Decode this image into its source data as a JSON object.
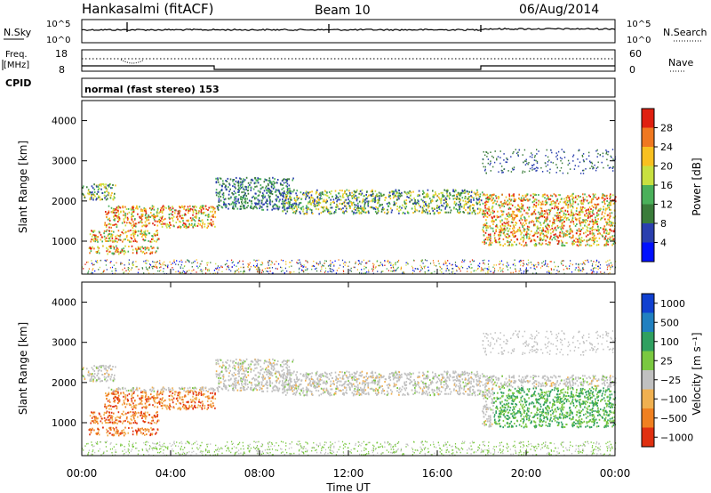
{
  "header": {
    "station": "Hankasalmi (fitACF)",
    "beam": "Beam 10",
    "date": "06/Aug/2014"
  },
  "params": {
    "nsky_label": "N.Sky",
    "nsearch_label": "N.Search",
    "freq_label_1": "Freq.",
    "freq_label_2": "[MHz]",
    "nave_label": "Nave",
    "cpid_label": "CPID",
    "cpid_text": "normal (fast stereo) 153",
    "noise_ticks": [
      "10^5",
      "10^0"
    ],
    "freq_ticks": [
      "18",
      "8"
    ],
    "nave_ticks": [
      "60",
      "0"
    ]
  },
  "chart_data": [
    {
      "type": "heatmap",
      "name": "power",
      "ylabel": "Slant Range [km]",
      "xlabel": "",
      "ylim": [
        180,
        4500
      ],
      "y_ticks": [
        "4000",
        "3000",
        "2000",
        "1000"
      ],
      "colorbar_label": "Power [dB]",
      "colorbar_ticks": [
        "28",
        "24",
        "20",
        "16",
        "12",
        "8",
        "4"
      ],
      "colors": [
        "#0010ff",
        "#2a3fae",
        "#3a7c3a",
        "#4ab05a",
        "#c8e040",
        "#f8c020",
        "#f07820",
        "#e02010"
      ],
      "scatter_bands": [
        {
          "t": [
            0.0,
            1.5
          ],
          "r": [
            2050,
            2450
          ],
          "level": "mid"
        },
        {
          "t": [
            0.3,
            3.5
          ],
          "r": [
            1000,
            1300
          ],
          "level": "high"
        },
        {
          "t": [
            0.3,
            3.5
          ],
          "r": [
            700,
            900
          ],
          "level": "high"
        },
        {
          "t": [
            1.0,
            6.0
          ],
          "r": [
            1350,
            1900
          ],
          "level": "high"
        },
        {
          "t": [
            6.0,
            9.5
          ],
          "r": [
            1800,
            2600
          ],
          "level": "low"
        },
        {
          "t": [
            9.0,
            18.0
          ],
          "r": [
            1700,
            2300
          ],
          "level": "mid"
        },
        {
          "t": [
            18.0,
            24.0
          ],
          "r": [
            900,
            2200
          ],
          "level": "high"
        }
      ]
    },
    {
      "type": "heatmap",
      "name": "velocity",
      "ylabel": "Slant Range [km]",
      "xlabel": "Time UT",
      "ylim": [
        180,
        4500
      ],
      "y_ticks": [
        "4000",
        "3000",
        "2000",
        "1000"
      ],
      "x_ticks": [
        "00:00",
        "04:00",
        "08:00",
        "12:00",
        "16:00",
        "20:00",
        "00:00"
      ],
      "colorbar_label": "Velocity [m s⁻¹]",
      "colorbar_ticks": [
        "1000",
        "500",
        "100",
        "25",
        "−25",
        "−100",
        "−500",
        "−1000"
      ],
      "colors": [
        "#1040d0",
        "#2080c0",
        "#30a060",
        "#7ac840",
        "#c0c0c0",
        "#f0b050",
        "#f08020",
        "#e03010"
      ],
      "ground_scatter_color": "#bebebe"
    }
  ],
  "colors": {
    "background": "#ffffff",
    "axis": "#000000"
  }
}
